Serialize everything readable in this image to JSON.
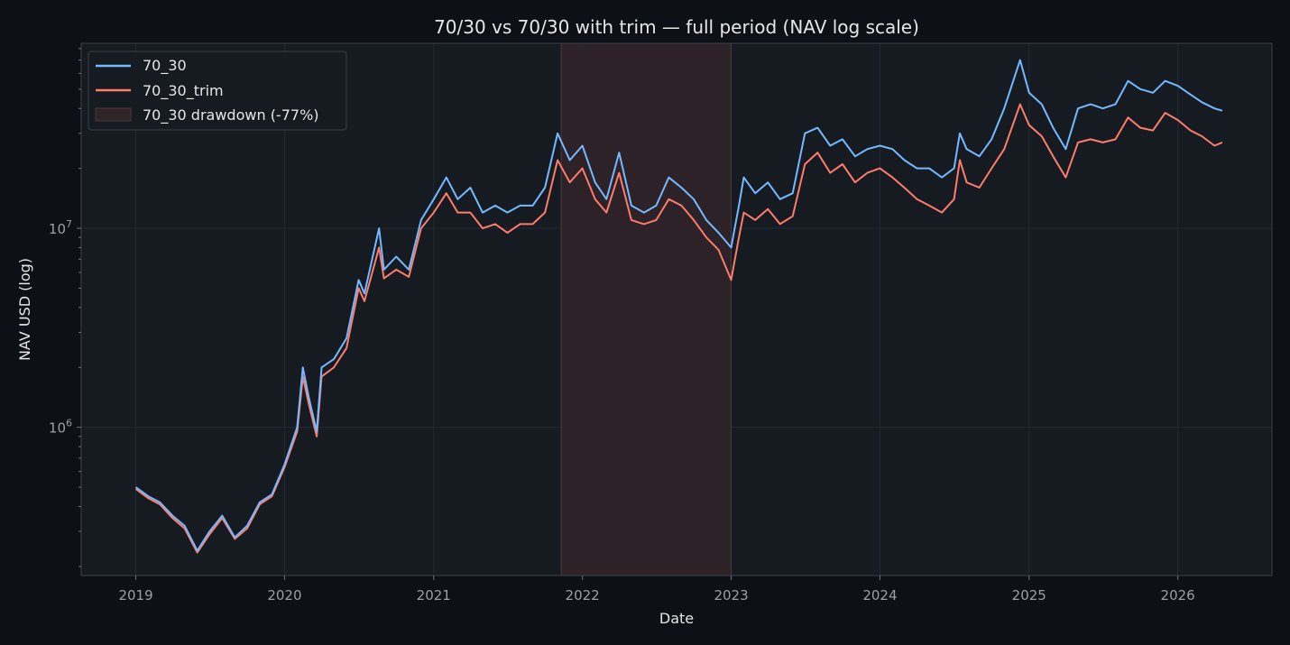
{
  "chart_data": {
    "type": "line",
    "title": "70/30 vs 70/30 with trim — full period (NAV log scale)",
    "xlabel": "Date",
    "ylabel": "NAV USD (log)",
    "y_scale": "log",
    "ylim": [
      180000,
      85000000
    ],
    "xlim": [
      "2018-08-20",
      "2026-08-20"
    ],
    "x_ticks": [
      "2019",
      "2020",
      "2021",
      "2022",
      "2023",
      "2024",
      "2025",
      "2026"
    ],
    "y_ticks": [
      {
        "value": 1000000,
        "base": "10",
        "exp": "6"
      },
      {
        "value": 10000000,
        "base": "10",
        "exp": "7"
      }
    ],
    "grid": true,
    "legend_position": "top-left",
    "drawdown_band": {
      "label": "70_30 drawdown (-77%)",
      "start": "2021-11-10",
      "end": "2023-01-01",
      "color": "#2f2428"
    },
    "series": [
      {
        "name": "70_30",
        "color": "#74b9ff",
        "points": [
          [
            "2019-01-01",
            500000
          ],
          [
            "2019-02-01",
            450000
          ],
          [
            "2019-03-01",
            420000
          ],
          [
            "2019-04-01",
            360000
          ],
          [
            "2019-05-01",
            320000
          ],
          [
            "2019-06-01",
            240000
          ],
          [
            "2019-07-01",
            300000
          ],
          [
            "2019-08-01",
            360000
          ],
          [
            "2019-09-01",
            280000
          ],
          [
            "2019-10-01",
            320000
          ],
          [
            "2019-11-01",
            420000
          ],
          [
            "2019-12-01",
            460000
          ],
          [
            "2020-01-01",
            650000
          ],
          [
            "2020-02-01",
            1000000
          ],
          [
            "2020-02-15",
            2000000
          ],
          [
            "2020-03-01",
            1400000
          ],
          [
            "2020-03-20",
            950000
          ],
          [
            "2020-04-01",
            2000000
          ],
          [
            "2020-05-01",
            2200000
          ],
          [
            "2020-06-01",
            2800000
          ],
          [
            "2020-07-01",
            5500000
          ],
          [
            "2020-07-15",
            4700000
          ],
          [
            "2020-08-20",
            10000000
          ],
          [
            "2020-09-01",
            6200000
          ],
          [
            "2020-10-01",
            7200000
          ],
          [
            "2020-11-01",
            6200000
          ],
          [
            "2020-12-01",
            11000000
          ],
          [
            "2021-01-01",
            14000000
          ],
          [
            "2021-02-01",
            18000000
          ],
          [
            "2021-03-01",
            14000000
          ],
          [
            "2021-04-01",
            16000000
          ],
          [
            "2021-05-01",
            12000000
          ],
          [
            "2021-06-01",
            13000000
          ],
          [
            "2021-07-01",
            12000000
          ],
          [
            "2021-08-01",
            13000000
          ],
          [
            "2021-09-01",
            13000000
          ],
          [
            "2021-10-01",
            16000000
          ],
          [
            "2021-11-01",
            30000000
          ],
          [
            "2021-12-01",
            22000000
          ],
          [
            "2022-01-01",
            26000000
          ],
          [
            "2022-02-01",
            17000000
          ],
          [
            "2022-03-01",
            14000000
          ],
          [
            "2022-04-01",
            24000000
          ],
          [
            "2022-05-01",
            13000000
          ],
          [
            "2022-06-01",
            12000000
          ],
          [
            "2022-07-01",
            13000000
          ],
          [
            "2022-08-01",
            18000000
          ],
          [
            "2022-09-01",
            16000000
          ],
          [
            "2022-10-01",
            14000000
          ],
          [
            "2022-11-01",
            11000000
          ],
          [
            "2022-12-01",
            9500000
          ],
          [
            "2023-01-01",
            8000000
          ],
          [
            "2023-01-20",
            13000000
          ],
          [
            "2023-02-01",
            18000000
          ],
          [
            "2023-03-01",
            15000000
          ],
          [
            "2023-04-01",
            17000000
          ],
          [
            "2023-05-01",
            14000000
          ],
          [
            "2023-06-01",
            15000000
          ],
          [
            "2023-07-01",
            30000000
          ],
          [
            "2023-08-01",
            32000000
          ],
          [
            "2023-09-01",
            26000000
          ],
          [
            "2023-10-01",
            28000000
          ],
          [
            "2023-11-01",
            23000000
          ],
          [
            "2023-12-01",
            25000000
          ],
          [
            "2024-01-01",
            26000000
          ],
          [
            "2024-02-01",
            25000000
          ],
          [
            "2024-03-01",
            22000000
          ],
          [
            "2024-04-01",
            20000000
          ],
          [
            "2024-05-01",
            20000000
          ],
          [
            "2024-06-01",
            18000000
          ],
          [
            "2024-07-01",
            20000000
          ],
          [
            "2024-07-15",
            30000000
          ],
          [
            "2024-08-01",
            25000000
          ],
          [
            "2024-09-01",
            23000000
          ],
          [
            "2024-10-01",
            28000000
          ],
          [
            "2024-11-01",
            40000000
          ],
          [
            "2024-12-10",
            70000000
          ],
          [
            "2025-01-01",
            48000000
          ],
          [
            "2025-02-01",
            42000000
          ],
          [
            "2025-03-01",
            32000000
          ],
          [
            "2025-04-01",
            25000000
          ],
          [
            "2025-05-01",
            40000000
          ],
          [
            "2025-06-01",
            42000000
          ],
          [
            "2025-07-01",
            40000000
          ],
          [
            "2025-08-01",
            42000000
          ],
          [
            "2025-09-01",
            55000000
          ],
          [
            "2025-10-01",
            50000000
          ],
          [
            "2025-11-01",
            48000000
          ],
          [
            "2025-12-01",
            55000000
          ],
          [
            "2026-01-01",
            52000000
          ],
          [
            "2026-02-01",
            47000000
          ],
          [
            "2026-03-01",
            43000000
          ],
          [
            "2026-04-01",
            40000000
          ],
          [
            "2026-04-20",
            39000000
          ]
        ]
      },
      {
        "name": "70_30_trim",
        "color": "#ff7b6b",
        "points": [
          [
            "2019-01-01",
            490000
          ],
          [
            "2019-02-01",
            440000
          ],
          [
            "2019-03-01",
            410000
          ],
          [
            "2019-04-01",
            350000
          ],
          [
            "2019-05-01",
            310000
          ],
          [
            "2019-06-01",
            235000
          ],
          [
            "2019-07-01",
            290000
          ],
          [
            "2019-08-01",
            350000
          ],
          [
            "2019-09-01",
            275000
          ],
          [
            "2019-10-01",
            310000
          ],
          [
            "2019-11-01",
            410000
          ],
          [
            "2019-12-01",
            450000
          ],
          [
            "2020-01-01",
            630000
          ],
          [
            "2020-02-01",
            950000
          ],
          [
            "2020-02-15",
            1800000
          ],
          [
            "2020-03-01",
            1300000
          ],
          [
            "2020-03-20",
            900000
          ],
          [
            "2020-04-01",
            1800000
          ],
          [
            "2020-05-01",
            2000000
          ],
          [
            "2020-06-01",
            2500000
          ],
          [
            "2020-07-01",
            5000000
          ],
          [
            "2020-07-15",
            4300000
          ],
          [
            "2020-08-20",
            8000000
          ],
          [
            "2020-09-01",
            5600000
          ],
          [
            "2020-10-01",
            6200000
          ],
          [
            "2020-11-01",
            5700000
          ],
          [
            "2020-12-01",
            10000000
          ],
          [
            "2021-01-01",
            12000000
          ],
          [
            "2021-02-01",
            15000000
          ],
          [
            "2021-03-01",
            12000000
          ],
          [
            "2021-04-01",
            12000000
          ],
          [
            "2021-05-01",
            10000000
          ],
          [
            "2021-06-01",
            10500000
          ],
          [
            "2021-07-01",
            9500000
          ],
          [
            "2021-08-01",
            10500000
          ],
          [
            "2021-09-01",
            10500000
          ],
          [
            "2021-10-01",
            12000000
          ],
          [
            "2021-11-01",
            22000000
          ],
          [
            "2021-12-01",
            17000000
          ],
          [
            "2022-01-01",
            20000000
          ],
          [
            "2022-02-01",
            14000000
          ],
          [
            "2022-03-01",
            12000000
          ],
          [
            "2022-04-01",
            19000000
          ],
          [
            "2022-05-01",
            11000000
          ],
          [
            "2022-06-01",
            10500000
          ],
          [
            "2022-07-01",
            11000000
          ],
          [
            "2022-08-01",
            14000000
          ],
          [
            "2022-09-01",
            13000000
          ],
          [
            "2022-10-01",
            11000000
          ],
          [
            "2022-11-01",
            9000000
          ],
          [
            "2022-12-01",
            7800000
          ],
          [
            "2023-01-01",
            5500000
          ],
          [
            "2023-01-20",
            9000000
          ],
          [
            "2023-02-01",
            12000000
          ],
          [
            "2023-03-01",
            11000000
          ],
          [
            "2023-04-01",
            12500000
          ],
          [
            "2023-05-01",
            10500000
          ],
          [
            "2023-06-01",
            11500000
          ],
          [
            "2023-07-01",
            21000000
          ],
          [
            "2023-08-01",
            24000000
          ],
          [
            "2023-09-01",
            19000000
          ],
          [
            "2023-10-01",
            21000000
          ],
          [
            "2023-11-01",
            17000000
          ],
          [
            "2023-12-01",
            19000000
          ],
          [
            "2024-01-01",
            20000000
          ],
          [
            "2024-02-01",
            18000000
          ],
          [
            "2024-03-01",
            16000000
          ],
          [
            "2024-04-01",
            14000000
          ],
          [
            "2024-05-01",
            13000000
          ],
          [
            "2024-06-01",
            12000000
          ],
          [
            "2024-07-01",
            14000000
          ],
          [
            "2024-07-15",
            22000000
          ],
          [
            "2024-08-01",
            17000000
          ],
          [
            "2024-09-01",
            16000000
          ],
          [
            "2024-10-01",
            20000000
          ],
          [
            "2024-11-01",
            25000000
          ],
          [
            "2024-12-10",
            42000000
          ],
          [
            "2025-01-01",
            33000000
          ],
          [
            "2025-02-01",
            29000000
          ],
          [
            "2025-03-01",
            23000000
          ],
          [
            "2025-04-01",
            18000000
          ],
          [
            "2025-05-01",
            27000000
          ],
          [
            "2025-06-01",
            28000000
          ],
          [
            "2025-07-01",
            27000000
          ],
          [
            "2025-08-01",
            28000000
          ],
          [
            "2025-09-01",
            36000000
          ],
          [
            "2025-10-01",
            32000000
          ],
          [
            "2025-11-01",
            31000000
          ],
          [
            "2025-12-01",
            38000000
          ],
          [
            "2026-01-01",
            35000000
          ],
          [
            "2026-02-01",
            31000000
          ],
          [
            "2026-03-01",
            29000000
          ],
          [
            "2026-04-01",
            26000000
          ],
          [
            "2026-04-20",
            27000000
          ]
        ]
      }
    ],
    "colors": {
      "background": "#0d1117",
      "plot_background": "#161b22",
      "grid": "#232a33",
      "spine": "#3a414a"
    }
  }
}
